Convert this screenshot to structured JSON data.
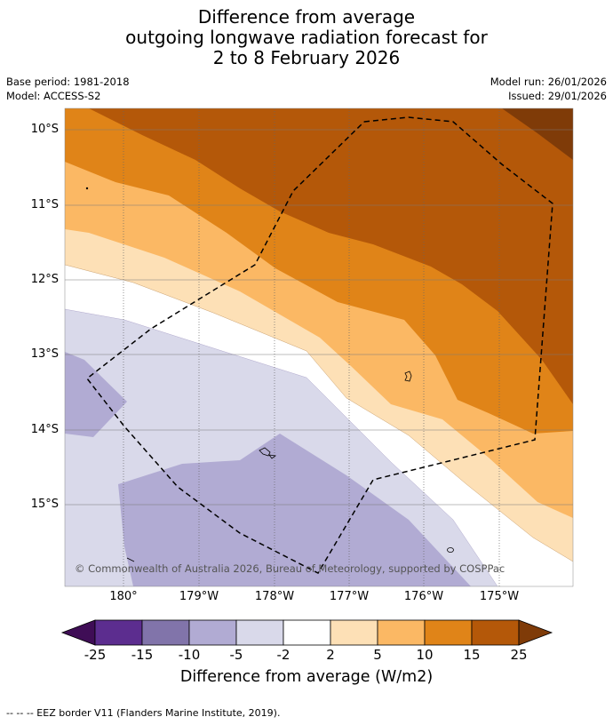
{
  "title": {
    "line1": "Difference from average",
    "line2": "outgoing longwave radiation forecast for",
    "line3": "2 to 8 February 2026"
  },
  "info": {
    "base_period": "Base period: 1981-2018",
    "model": "Model: ACCESS-S2",
    "model_run": "Model run: 26/01/2026",
    "issued": "Issued: 29/01/2026"
  },
  "axes": {
    "latitudes": [
      "10°S",
      "11°S",
      "12°S",
      "13°S",
      "14°S",
      "15°S"
    ],
    "longitudes": [
      "180°",
      "179°W",
      "178°W",
      "177°W",
      "176°W",
      "175°W"
    ]
  },
  "copyright": "© Commonwealth of Australia 2026, Bureau of Meteorology, supported by COSPPac",
  "colorbar": {
    "ticks": [
      "-25",
      "-15",
      "-10",
      "-5",
      "-2",
      "2",
      "5",
      "10",
      "15",
      "25"
    ],
    "colors": {
      "below_min": "#3f0d56",
      "neg_25_15": "#5c2d8f",
      "neg_15_10": "#8174aa",
      "neg_10_5": "#b1abd3",
      "neg_5_2": "#d9d9ea",
      "neutral": "#ffffff",
      "pos_2_5": "#fde0b6",
      "pos_5_10": "#fbb864",
      "pos_10_15": "#e08418",
      "pos_15_25": "#b45809",
      "above_max": "#7f3b08"
    },
    "label": "Difference from average (W/m2)"
  },
  "legend": "--  --  -- EEZ border V11 (Flanders Marine Institute, 2019)."
}
